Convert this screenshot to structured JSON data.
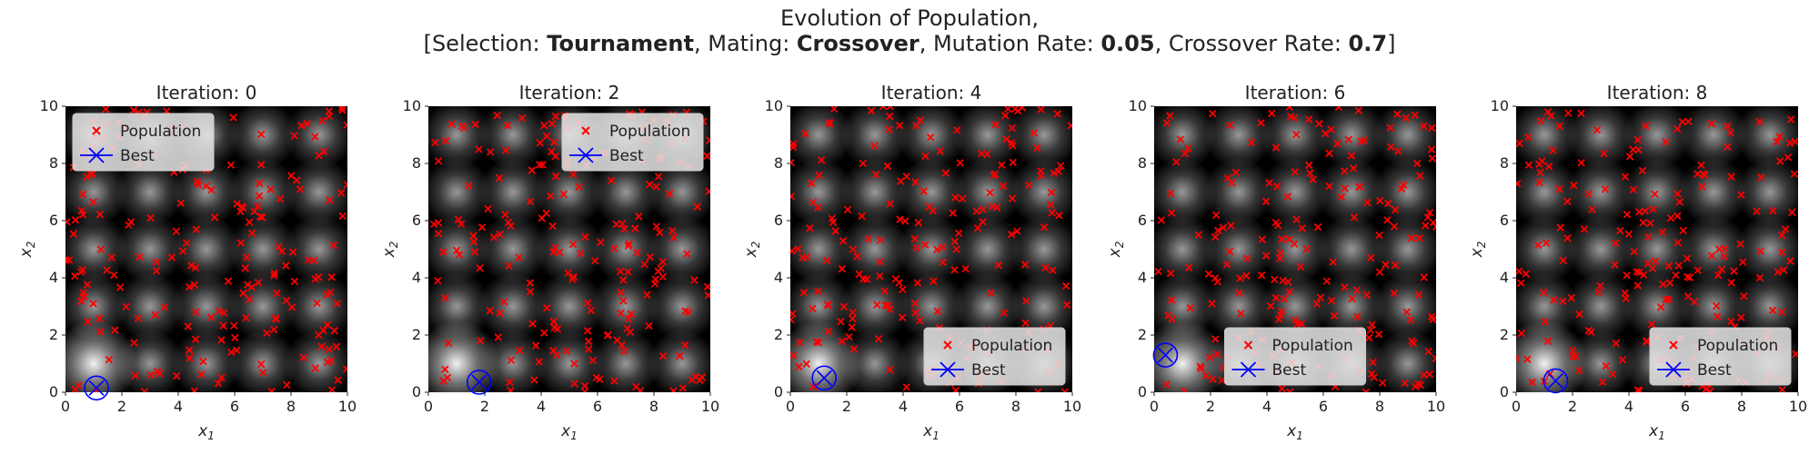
{
  "figure": {
    "title_line1": "Evolution of Population,",
    "title_line2": {
      "open": "[",
      "selection_label": "Selection:",
      "selection_value": "Tournament",
      "mating_label": "Mating:",
      "mating_value": "Crossover",
      "mutation_label": "Mutation Rate:",
      "mutation_value": "0.05",
      "crossover_label": "Crossover Rate:",
      "crossover_value": "0.7",
      "close": "]"
    }
  },
  "legend": {
    "population": "Population",
    "best": "Best"
  },
  "colors": {
    "population": "#ff0000",
    "best": "#0000ff",
    "background": "#000000"
  },
  "chart_data": [
    {
      "type": "scatter",
      "title": "Iteration: 0",
      "xlabel": "x1",
      "ylabel": "x2",
      "xlim": [
        0,
        10
      ],
      "ylim": [
        0,
        10
      ],
      "xticks": [
        0,
        2,
        4,
        6,
        8,
        10
      ],
      "yticks": [
        0,
        2,
        4,
        6,
        8,
        10
      ],
      "legend_loc": "upper-left",
      "best": [
        1.1,
        0.15
      ]
    },
    {
      "type": "scatter",
      "title": "Iteration: 2",
      "xlabel": "x1",
      "ylabel": "x2",
      "xlim": [
        0,
        10
      ],
      "ylim": [
        0,
        10
      ],
      "xticks": [
        0,
        2,
        4,
        6,
        8,
        10
      ],
      "yticks": [
        0,
        2,
        4,
        6,
        8,
        10
      ],
      "legend_loc": "upper-right",
      "best": [
        1.8,
        0.35
      ]
    },
    {
      "type": "scatter",
      "title": "Iteration: 4",
      "xlabel": "x1",
      "ylabel": "x2",
      "xlim": [
        0,
        10
      ],
      "ylim": [
        0,
        10
      ],
      "xticks": [
        0,
        2,
        4,
        6,
        8,
        10
      ],
      "yticks": [
        0,
        2,
        4,
        6,
        8,
        10
      ],
      "legend_loc": "lower-right",
      "best": [
        1.2,
        0.5
      ]
    },
    {
      "type": "scatter",
      "title": "Iteration: 6",
      "xlabel": "x1",
      "ylabel": "x2",
      "xlim": [
        0,
        10
      ],
      "ylim": [
        0,
        10
      ],
      "xticks": [
        0,
        2,
        4,
        6,
        8,
        10
      ],
      "yticks": [
        0,
        2,
        4,
        6,
        8,
        10
      ],
      "legend_loc": "lower-center",
      "best": [
        0.4,
        1.3
      ]
    },
    {
      "type": "scatter",
      "title": "Iteration: 8",
      "xlabel": "x1",
      "ylabel": "x2",
      "xlim": [
        0,
        10
      ],
      "ylim": [
        0,
        10
      ],
      "xticks": [
        0,
        2,
        4,
        6,
        8,
        10
      ],
      "yticks": [
        0,
        2,
        4,
        6,
        8,
        10
      ],
      "legend_loc": "lower-right",
      "best": [
        1.4,
        0.4
      ]
    }
  ]
}
